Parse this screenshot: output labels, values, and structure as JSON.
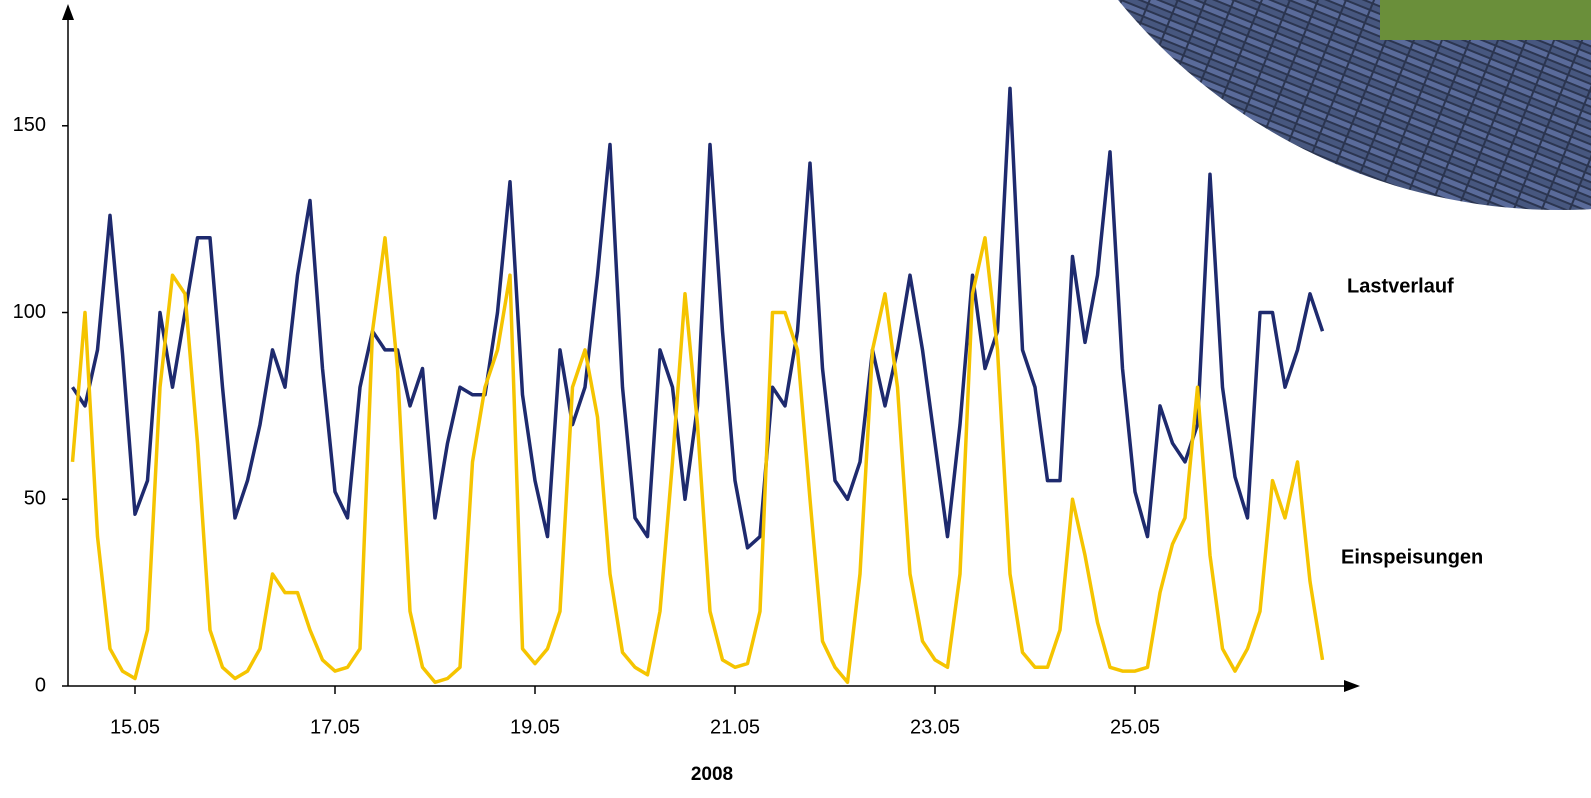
{
  "chart_data": {
    "type": "line",
    "xlabel": "2008",
    "x": [
      14.375,
      14.5,
      14.625,
      14.75,
      14.875,
      15,
      15.125,
      15.25,
      15.375,
      15.5,
      15.625,
      15.75,
      15.875,
      16,
      16.125,
      16.25,
      16.375,
      16.5,
      16.625,
      16.75,
      16.875,
      17,
      17.125,
      17.25,
      17.375,
      17.5,
      17.625,
      17.75,
      17.875,
      18,
      18.125,
      18.25,
      18.375,
      18.5,
      18.625,
      18.75,
      18.875,
      19,
      19.125,
      19.25,
      19.375,
      19.5,
      19.625,
      19.75,
      19.875,
      20,
      20.125,
      20.25,
      20.375,
      20.5,
      20.625,
      20.75,
      20.875,
      21,
      21.125,
      21.25,
      21.375,
      21.5,
      21.625,
      21.75,
      21.875,
      22,
      22.125,
      22.25,
      22.375,
      22.5,
      22.625,
      22.75,
      22.875,
      23,
      23.125,
      23.25,
      23.375,
      23.5,
      23.625,
      23.75,
      23.875,
      24,
      24.125,
      24.25,
      24.375,
      24.5,
      24.625,
      24.75,
      24.875,
      25,
      25.125,
      25.25,
      25.375,
      25.5,
      25.625,
      25.75,
      25.875,
      26,
      26.125,
      26.25,
      26.375,
      26.5,
      26.625,
      26.75,
      26.875
    ],
    "series": [
      {
        "name": "Lastverlauf",
        "color": "#1e2a6e",
        "values": [
          80,
          75,
          90,
          126,
          89,
          46,
          55,
          100,
          80,
          100,
          120,
          120,
          80,
          45,
          55,
          70,
          90,
          80,
          110,
          130,
          85,
          52,
          45,
          80,
          95,
          90,
          90,
          75,
          85,
          45,
          65,
          80,
          78,
          78,
          100,
          135,
          78,
          55,
          40,
          90,
          70,
          80,
          110,
          145,
          80,
          45,
          40,
          90,
          80,
          50,
          75,
          145,
          95,
          55,
          37,
          40,
          80,
          75,
          95,
          140,
          85,
          55,
          50,
          60,
          90,
          75,
          90,
          110,
          90,
          65,
          40,
          70,
          110,
          85,
          95,
          160,
          90,
          80,
          55,
          55,
          115,
          92,
          110,
          143,
          85,
          52,
          40,
          75,
          65,
          60,
          70,
          137,
          80,
          56,
          45,
          100,
          100,
          80,
          90,
          105,
          95
        ]
      },
      {
        "name": "Einspeisungen",
        "color": "#f5c400",
        "values": [
          60,
          100,
          40,
          10,
          4,
          2,
          15,
          80,
          110,
          105,
          65,
          15,
          5,
          2,
          4,
          10,
          30,
          25,
          25,
          15,
          7,
          4,
          5,
          10,
          95,
          120,
          85,
          20,
          5,
          1,
          2,
          5,
          60,
          80,
          90,
          110,
          10,
          6,
          10,
          20,
          80,
          90,
          72,
          30,
          9,
          5,
          3,
          20,
          60,
          105,
          70,
          20,
          7,
          5,
          6,
          20,
          100,
          100,
          90,
          50,
          12,
          5,
          1,
          30,
          90,
          105,
          80,
          30,
          12,
          7,
          5,
          30,
          105,
          120,
          90,
          30,
          9,
          5,
          5,
          15,
          50,
          35,
          17,
          5,
          4,
          4,
          5,
          25,
          38,
          45,
          80,
          35,
          10,
          4,
          10,
          20,
          55,
          45,
          60,
          28,
          7
        ]
      }
    ],
    "xlim": [
      14.33,
      27.2
    ],
    "xticks": [
      {
        "value": 15,
        "label": "15.05"
      },
      {
        "value": 17,
        "label": "17.05"
      },
      {
        "value": 19,
        "label": "19.05"
      },
      {
        "value": 21,
        "label": "21.05"
      },
      {
        "value": 23,
        "label": "23.05"
      },
      {
        "value": 25,
        "label": "25.05"
      }
    ],
    "ylim": [
      0,
      181
    ],
    "yticks": [
      0,
      50,
      100,
      150
    ],
    "grid": false
  }
}
